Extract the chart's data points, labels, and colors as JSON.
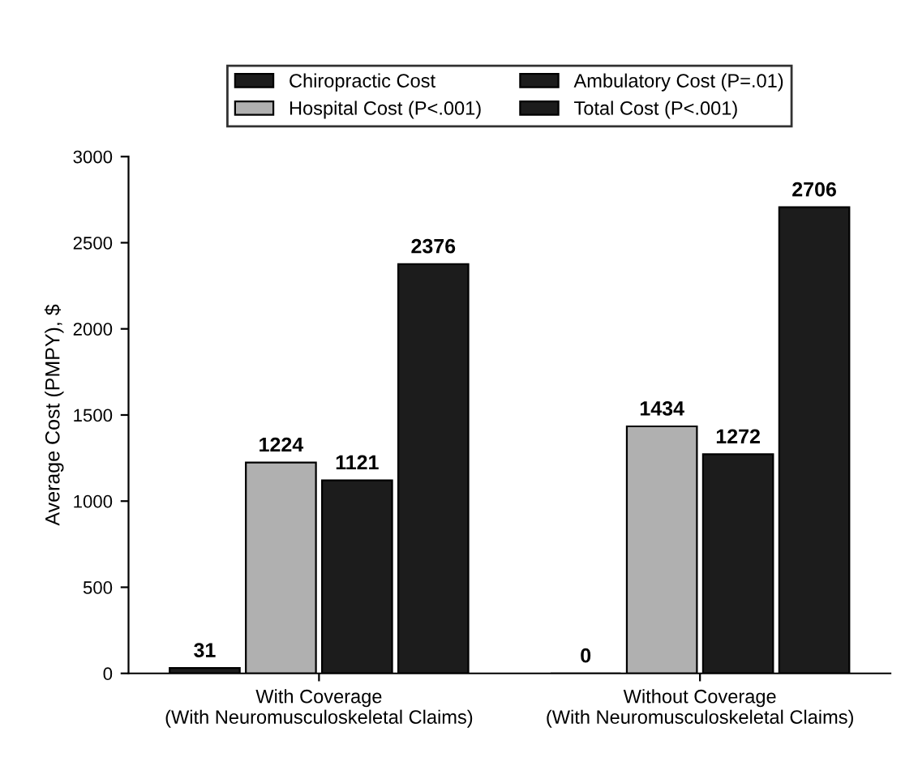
{
  "chart_data": {
    "type": "bar",
    "ylabel": "Average Cost (PMPY), $",
    "categories": [
      "With Coverage\n(With Neuromusculoskeletal Claims)",
      "Without Coverage\n(With Neuromusculoskeletal Claims)"
    ],
    "series": [
      {
        "name": "Chiropractic Cost",
        "color": "#1c1c1c",
        "values": [
          31,
          0
        ],
        "value_labels": [
          "31",
          null
        ]
      },
      {
        "name": "Hospital Cost (P<.001)",
        "color": "#b0b0b0",
        "values": [
          1224,
          1434
        ]
      },
      {
        "name": "Ambulatory Cost (P=.01)",
        "color": "#1c1c1c",
        "values": [
          1121,
          1272
        ]
      },
      {
        "name": "Total Cost (P<.001)",
        "color": "#1c1c1c",
        "values": [
          2376,
          2706
        ]
      }
    ],
    "ylim": [
      0,
      3000
    ],
    "yticks": [
      0,
      500,
      1000,
      1500,
      2000,
      2500,
      3000
    ],
    "data_labels": true,
    "annotations": [
      "0"
    ],
    "legend": "top",
    "grid": false
  }
}
